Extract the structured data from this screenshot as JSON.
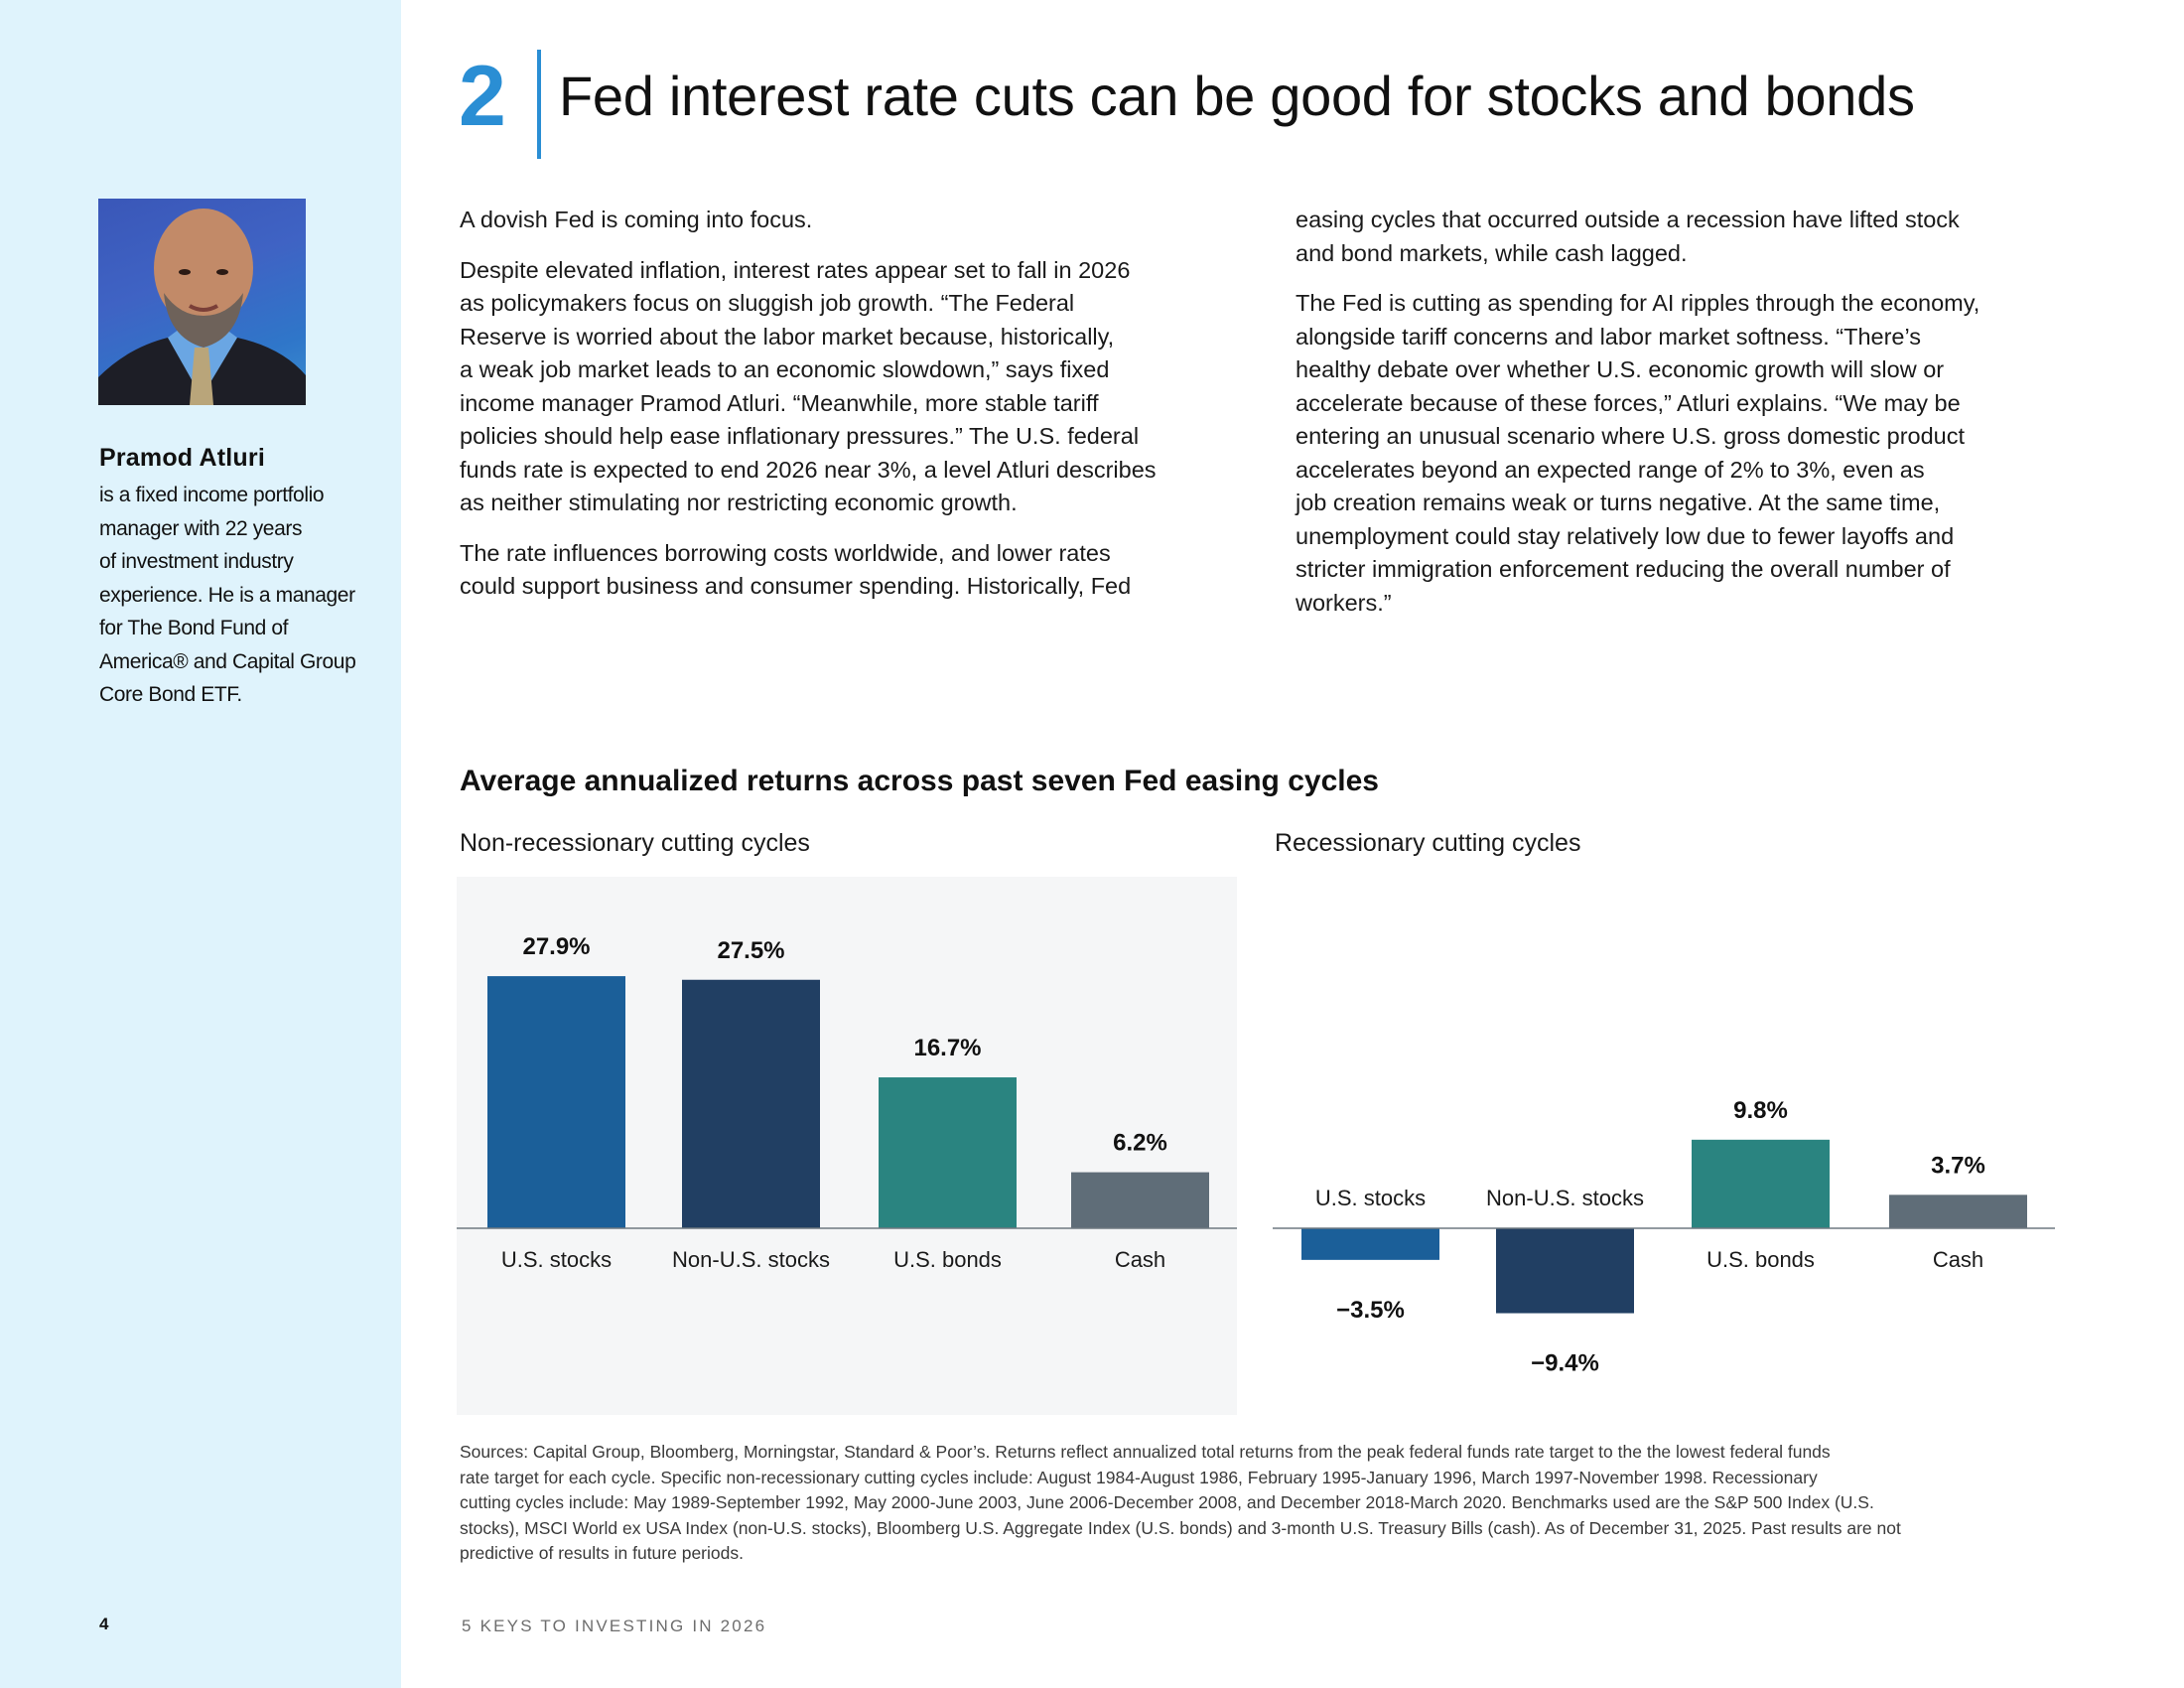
{
  "sidebar": {
    "photo_alt": "Portrait of Pramod Atluri",
    "bio_name": "Pramod Atluri",
    "bio_lines": [
      "is a fixed income portfolio",
      "manager with 22 years",
      "of investment industry",
      "experience. He is a manager",
      "for The Bond Fund of",
      "America® and Capital Group",
      "Core Bond ETF."
    ],
    "page_number": "4"
  },
  "header": {
    "section_number": "2",
    "title": "Fed interest rate cuts can be good for stocks and bonds"
  },
  "body": {
    "left_column": [
      [
        "A dovish Fed is coming into focus."
      ],
      [
        "Despite elevated inflation, interest rates appear set to fall in 2026",
        "as policymakers focus on sluggish job growth. “The Federal",
        "Reserve is worried about the labor market because, historically,",
        "a weak job market leads to an economic slowdown,” says fixed",
        "income manager Pramod Atluri. “Meanwhile, more stable tariff",
        "policies should help ease inflationary pressures.” The U.S. federal",
        "funds rate is expected to end 2026 near 3%, a level Atluri describes",
        "as neither stimulating nor restricting economic growth."
      ],
      [
        "The rate influences borrowing costs worldwide, and lower rates",
        "could support business and consumer spending. Historically, Fed"
      ]
    ],
    "right_column": [
      [
        "easing cycles that occurred outside a recession have lifted stock",
        "and bond markets, while cash lagged."
      ],
      [
        "The Fed is cutting as spending for AI ripples through the economy,",
        "alongside tariff concerns and labor market softness. “There’s",
        "healthy debate over whether U.S. economic growth will slow or",
        "accelerate because of these forces,” Atluri explains. “We may be",
        "entering an unusual scenario where U.S. gross domestic product",
        "accelerates beyond an expected range of 2% to 3%, even as",
        "job creation remains weak or turns negative. At the same time,",
        "unemployment could stay relatively low due to fewer layoffs and",
        "stricter immigration enforcement reducing the overall number of",
        "workers.”"
      ]
    ]
  },
  "chart_data": {
    "type": "bar",
    "title": "Average annualized returns across past seven Fed easing cycles",
    "categories": [
      "U.S. stocks",
      "Non-U.S. stocks",
      "U.S. bonds",
      "Cash"
    ],
    "colors": {
      "U.S. stocks": "#1b5f99",
      "Non-U.S. stocks": "#213f63",
      "U.S. bonds": "#2a8480",
      "Cash": "#5f6d78"
    },
    "unit": "%",
    "panels": [
      {
        "subtitle": "Non-recessionary cutting cycles",
        "values": [
          27.9,
          27.5,
          16.7,
          6.2
        ],
        "labels": [
          "27.9%",
          "27.5%",
          "16.7%",
          "6.2%"
        ],
        "shaded_background": true
      },
      {
        "subtitle": "Recessionary cutting cycles",
        "values": [
          -3.5,
          -9.4,
          9.8,
          3.7
        ],
        "labels": [
          "−3.5%",
          "−9.4%",
          "9.8%",
          "3.7%"
        ],
        "shaded_background": false
      }
    ],
    "xlabel": "",
    "ylabel": "",
    "grid": false,
    "legend": "none"
  },
  "footnote": {
    "lines": [
      "Sources: Capital Group, Bloomberg, Morningstar, Standard & Poor’s. Returns reflect annualized total returns from the peak federal funds rate target to the the lowest federal funds",
      "rate target for each cycle. Specific non-recessionary cutting cycles include: August 1984-August 1986, February 1995-January 1996, March 1997-November 1998. Recessionary",
      "cutting cycles include: May 1989-September 1992, May 2000-June 2003, June 2006-December 2008, and December 2018-March 2020. Benchmarks used are the S&P 500 Index (U.S.",
      "stocks), MSCI World ex USA Index (non-U.S. stocks), Bloomberg U.S. Aggregate Index (U.S. bonds) and 3-month U.S. Treasury Bills (cash). As of December 31, 2025. Past results are not",
      "predictive of results in future periods."
    ]
  },
  "footer": {
    "title": "5 KEYS TO INVESTING IN 2026"
  },
  "theme": {
    "sidebar_bg": "#dff3fc",
    "accent": "#2a8ed4",
    "panel_bg": "#f5f6f7",
    "baseline": "#6f7880"
  }
}
